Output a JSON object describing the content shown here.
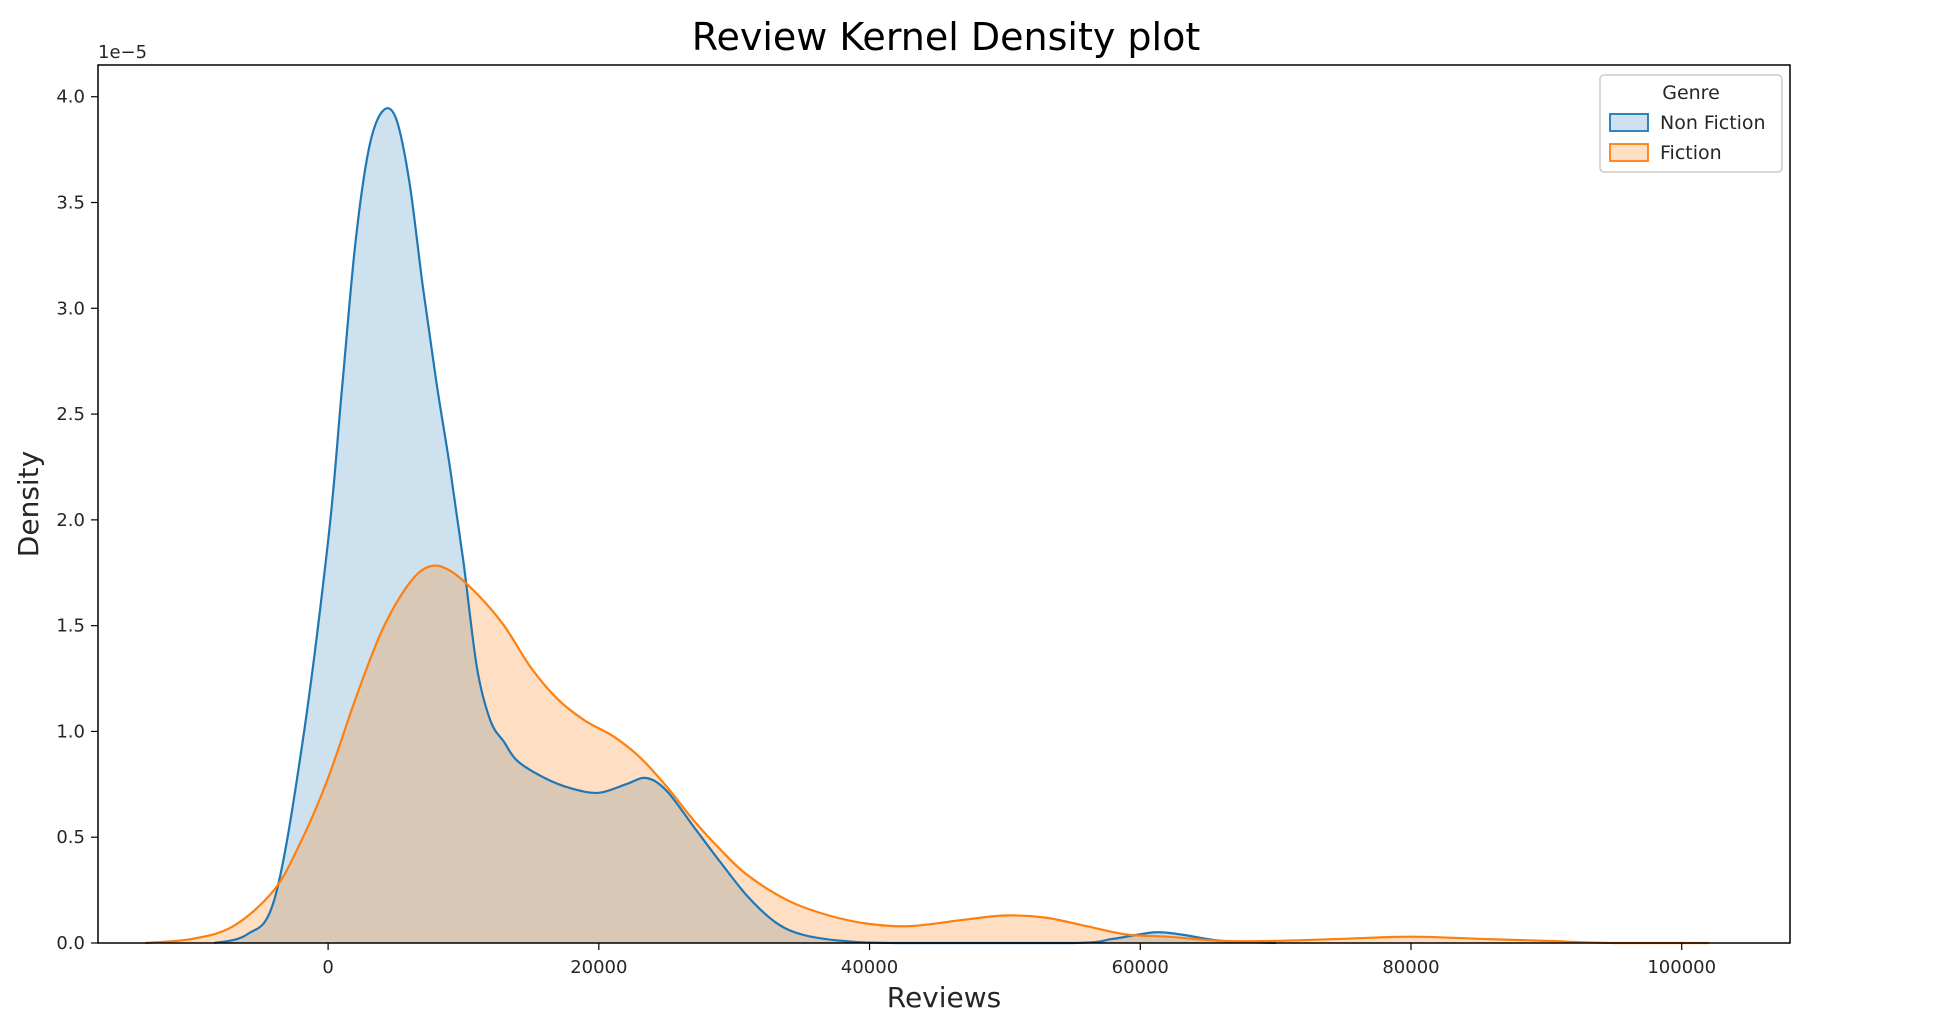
{
  "chart_data": {
    "type": "area",
    "title": "Review Kernel Density plot",
    "xlabel": "Reviews",
    "ylabel": "Density",
    "y_offset_label": "1e−5",
    "xlim": [
      -17000,
      108000
    ],
    "ylim": [
      0,
      4.15
    ],
    "y_unit_multiplier": "1e-5",
    "x_ticks": [
      0,
      20000,
      40000,
      60000,
      80000,
      100000
    ],
    "x_tick_labels": [
      "0",
      "20000",
      "40000",
      "60000",
      "80000",
      "100000"
    ],
    "y_ticks": [
      0,
      0.5,
      1,
      1.5,
      2,
      2.5,
      3,
      3.5,
      4
    ],
    "y_tick_labels": [
      "0.0",
      "0.5",
      "1.0",
      "1.5",
      "2.0",
      "2.5",
      "3.0",
      "3.5",
      "4.0"
    ],
    "grid": false,
    "legend": {
      "title": "Genre",
      "placement": "top-right"
    },
    "series": [
      {
        "name": "Non Fiction",
        "color": "#1f77b4",
        "fill_opacity": 0.22,
        "points": [
          [
            -8400,
            0.0
          ],
          [
            -6000,
            0.04
          ],
          [
            -4000,
            0.2
          ],
          [
            -2000,
            0.9
          ],
          [
            0,
            1.9
          ],
          [
            1000,
            2.6
          ],
          [
            2000,
            3.3
          ],
          [
            3000,
            3.75
          ],
          [
            4000,
            3.93
          ],
          [
            5000,
            3.9
          ],
          [
            6000,
            3.6
          ],
          [
            7000,
            3.1
          ],
          [
            8000,
            2.65
          ],
          [
            9000,
            2.25
          ],
          [
            10000,
            1.8
          ],
          [
            11000,
            1.3
          ],
          [
            12000,
            1.05
          ],
          [
            13000,
            0.95
          ],
          [
            14000,
            0.86
          ],
          [
            16000,
            0.78
          ],
          [
            18000,
            0.73
          ],
          [
            20000,
            0.71
          ],
          [
            22000,
            0.75
          ],
          [
            23500,
            0.78
          ],
          [
            25000,
            0.72
          ],
          [
            27000,
            0.55
          ],
          [
            29000,
            0.38
          ],
          [
            31000,
            0.22
          ],
          [
            33000,
            0.1
          ],
          [
            35000,
            0.04
          ],
          [
            38000,
            0.01
          ],
          [
            42000,
            0.0
          ],
          [
            55000,
            0.0
          ],
          [
            58000,
            0.02
          ],
          [
            61000,
            0.05
          ],
          [
            63000,
            0.04
          ],
          [
            66000,
            0.01
          ],
          [
            70000,
            0.0
          ]
        ]
      },
      {
        "name": "Fiction",
        "color": "#ff7f0e",
        "fill_opacity": 0.25,
        "points": [
          [
            -13500,
            0.0
          ],
          [
            -10000,
            0.02
          ],
          [
            -7000,
            0.08
          ],
          [
            -4000,
            0.25
          ],
          [
            -2000,
            0.48
          ],
          [
            0,
            0.78
          ],
          [
            2000,
            1.15
          ],
          [
            4000,
            1.48
          ],
          [
            6000,
            1.7
          ],
          [
            7500,
            1.78
          ],
          [
            9000,
            1.76
          ],
          [
            11000,
            1.65
          ],
          [
            13000,
            1.5
          ],
          [
            15000,
            1.3
          ],
          [
            17000,
            1.15
          ],
          [
            19000,
            1.05
          ],
          [
            21000,
            0.98
          ],
          [
            23000,
            0.88
          ],
          [
            25000,
            0.74
          ],
          [
            27000,
            0.58
          ],
          [
            29000,
            0.44
          ],
          [
            31000,
            0.32
          ],
          [
            34000,
            0.2
          ],
          [
            37000,
            0.13
          ],
          [
            40000,
            0.09
          ],
          [
            43000,
            0.08
          ],
          [
            47000,
            0.11
          ],
          [
            50000,
            0.13
          ],
          [
            53000,
            0.12
          ],
          [
            56000,
            0.08
          ],
          [
            59000,
            0.04
          ],
          [
            62000,
            0.03
          ],
          [
            66000,
            0.01
          ],
          [
            70000,
            0.01
          ],
          [
            75000,
            0.02
          ],
          [
            80000,
            0.03
          ],
          [
            85000,
            0.02
          ],
          [
            90000,
            0.01
          ],
          [
            95000,
            0.0
          ],
          [
            102000,
            0.0
          ]
        ]
      }
    ]
  }
}
